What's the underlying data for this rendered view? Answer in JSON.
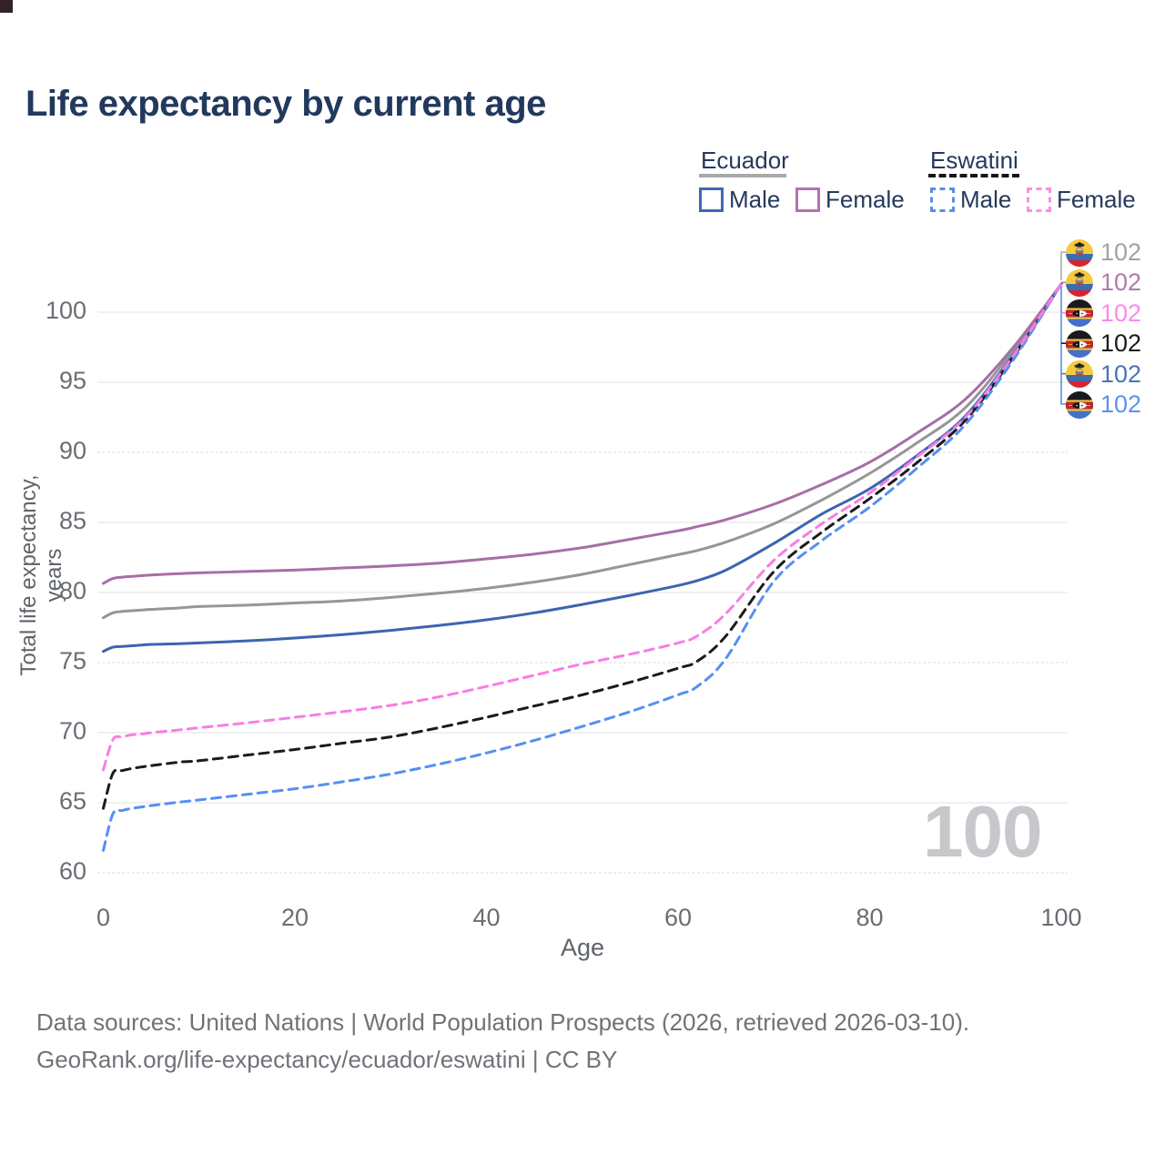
{
  "title": "Life expectancy by current age",
  "watermark": "100",
  "legend": {
    "groups": [
      {
        "country": "Ecuador",
        "line_style": "solid",
        "header_color": "#a9a9a9",
        "items": [
          {
            "label": "Male",
            "color": "#3d68b2"
          },
          {
            "label": "Female",
            "color": "#b273ae"
          }
        ]
      },
      {
        "country": "Eswatini",
        "line_style": "dashed",
        "header_color": "#161616",
        "items": [
          {
            "label": "Male",
            "color": "#5a8ee8"
          },
          {
            "label": "Female",
            "color": "#f98fe5"
          }
        ]
      }
    ]
  },
  "chart_data": {
    "type": "line",
    "title": "Life expectancy by current age",
    "xlabel": "Age",
    "ylabel": "Total life expectancy, years",
    "xlim": [
      0,
      100
    ],
    "ylim": [
      60,
      103
    ],
    "x_ticks": [
      0,
      20,
      40,
      60,
      80,
      100
    ],
    "y_ticks": [
      100,
      95,
      90,
      85,
      80,
      75,
      70,
      65,
      60
    ],
    "dotted_gridlines": [
      90,
      75,
      60
    ],
    "grid": true,
    "legend_position": "top-right",
    "x": [
      0,
      1,
      2,
      3,
      4,
      5,
      8,
      10,
      15,
      20,
      25,
      30,
      35,
      40,
      45,
      50,
      55,
      60,
      62,
      65,
      70,
      75,
      80,
      85,
      90,
      95,
      100
    ],
    "series": [
      {
        "name": "Ecuador",
        "country": "Ecuador",
        "sex": "Both",
        "style": "solid",
        "color": "#969696",
        "values": [
          78.2,
          78.55,
          78.65,
          78.7,
          78.75,
          78.8,
          78.9,
          79.0,
          79.1,
          79.25,
          79.4,
          79.65,
          79.95,
          80.3,
          80.75,
          81.3,
          82.0,
          82.7,
          83.0,
          83.6,
          84.9,
          86.6,
          88.5,
          90.7,
          93.2,
          97.3,
          102
        ]
      },
      {
        "name": "Ecuador Male",
        "country": "Ecuador",
        "sex": "Male",
        "style": "solid",
        "color": "#3d65ae",
        "values": [
          75.8,
          76.1,
          76.15,
          76.2,
          76.25,
          76.3,
          76.35,
          76.4,
          76.55,
          76.75,
          77.0,
          77.3,
          77.65,
          78.05,
          78.55,
          79.15,
          79.8,
          80.5,
          80.85,
          81.6,
          83.5,
          85.6,
          87.4,
          89.8,
          92.6,
          97.0,
          102
        ]
      },
      {
        "name": "Ecuador Female",
        "country": "Ecuador",
        "sex": "Female",
        "style": "solid",
        "color": "#a86ea6",
        "values": [
          80.65,
          81.0,
          81.1,
          81.15,
          81.2,
          81.25,
          81.35,
          81.4,
          81.5,
          81.6,
          81.75,
          81.9,
          82.1,
          82.4,
          82.75,
          83.2,
          83.8,
          84.4,
          84.7,
          85.2,
          86.3,
          87.7,
          89.3,
          91.4,
          93.8,
          97.5,
          102
        ]
      },
      {
        "name": "Eswatini",
        "country": "Eswatini",
        "sex": "Both",
        "style": "dashed",
        "color": "#1b1b1b",
        "values": [
          64.6,
          67.1,
          67.3,
          67.45,
          67.55,
          67.65,
          67.9,
          68.0,
          68.4,
          68.8,
          69.25,
          69.7,
          70.35,
          71.1,
          71.9,
          72.7,
          73.6,
          74.6,
          75.1,
          76.9,
          81.5,
          84.3,
          86.7,
          89.3,
          92.3,
          96.8,
          102
        ]
      },
      {
        "name": "Eswatini Male",
        "country": "Eswatini",
        "sex": "Male",
        "style": "dashed",
        "color": "#5590f2",
        "values": [
          61.6,
          64.2,
          64.45,
          64.6,
          64.7,
          64.8,
          65.05,
          65.2,
          65.6,
          66.0,
          66.5,
          67.05,
          67.75,
          68.55,
          69.45,
          70.45,
          71.5,
          72.7,
          73.3,
          75.3,
          80.8,
          83.7,
          86.1,
          88.9,
          92.0,
          96.6,
          102
        ]
      },
      {
        "name": "Eswatini Female",
        "country": "Eswatini",
        "sex": "Female",
        "style": "dashed",
        "color": "#fa7ce4",
        "values": [
          67.35,
          69.5,
          69.7,
          69.85,
          69.9,
          70.0,
          70.2,
          70.35,
          70.7,
          71.1,
          71.5,
          71.95,
          72.55,
          73.3,
          74.1,
          74.9,
          75.6,
          76.4,
          76.9,
          78.5,
          82.3,
          84.9,
          87.1,
          89.7,
          92.5,
          96.9,
          102
        ]
      }
    ],
    "end_labels": [
      {
        "flag": "ecuador",
        "value": "102",
        "color": "#a0a2a6"
      },
      {
        "flag": "ecuador",
        "value": "102",
        "color": "#b279ae"
      },
      {
        "flag": "eswatini",
        "value": "102",
        "color": "#fb8ae8"
      },
      {
        "flag": "eswatini",
        "value": "102",
        "color": "#1b1b1b"
      },
      {
        "flag": "ecuador",
        "value": "102",
        "color": "#4a74b8"
      },
      {
        "flag": "eswatini",
        "value": "102",
        "color": "#5b93ee"
      }
    ]
  },
  "footer": {
    "line1": "Data sources: United Nations | World Population Prospects (2026, retrieved 2026-03-10).",
    "line2": "GeoRank.org/life-expectancy/ecuador/eswatini | CC BY"
  }
}
